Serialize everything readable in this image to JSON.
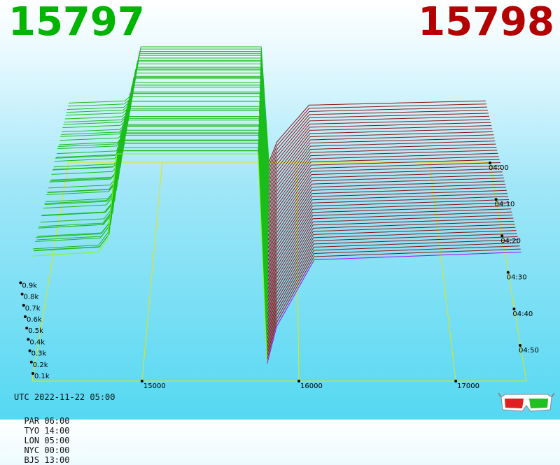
{
  "header": {
    "bid_price": "15797",
    "ask_price": "15798"
  },
  "colors": {
    "bid": "#00b400",
    "ask": "#b40000",
    "bid_line": "#1bbd1b",
    "ask_line": "#8e1212",
    "frame": "#e6e600",
    "latest_bid": "#7fff00",
    "latest_ask": "#b000ff"
  },
  "chart_data": {
    "type": "3d-line",
    "x_axis": {
      "ticks": [
        15000,
        16000,
        17000
      ],
      "labels": [
        "15000",
        "16000",
        "17000"
      ]
    },
    "z_axis": {
      "labels": [
        "0.1k",
        "0.2k",
        "0.3k",
        "0.4k",
        "0.5k",
        "0.6k",
        "0.7k",
        "0.8k",
        "0.9k"
      ]
    },
    "time_axis": {
      "labels": [
        "04:00",
        "04:10",
        "04:20",
        "04:30",
        "04:40",
        "04:50"
      ]
    },
    "xlim": [
      14300,
      17450
    ],
    "spread": {
      "bid": 15797,
      "ask": 15798
    }
  },
  "footer": {
    "utc": "UTC 2022-11-22 05:00",
    "zones": [
      "PAR 06:00",
      "TYO 14:00",
      "LON 05:00",
      "NYC 00:00",
      "BJS 13:00"
    ]
  },
  "icons": {
    "glasses": "3d-glasses-icon"
  }
}
